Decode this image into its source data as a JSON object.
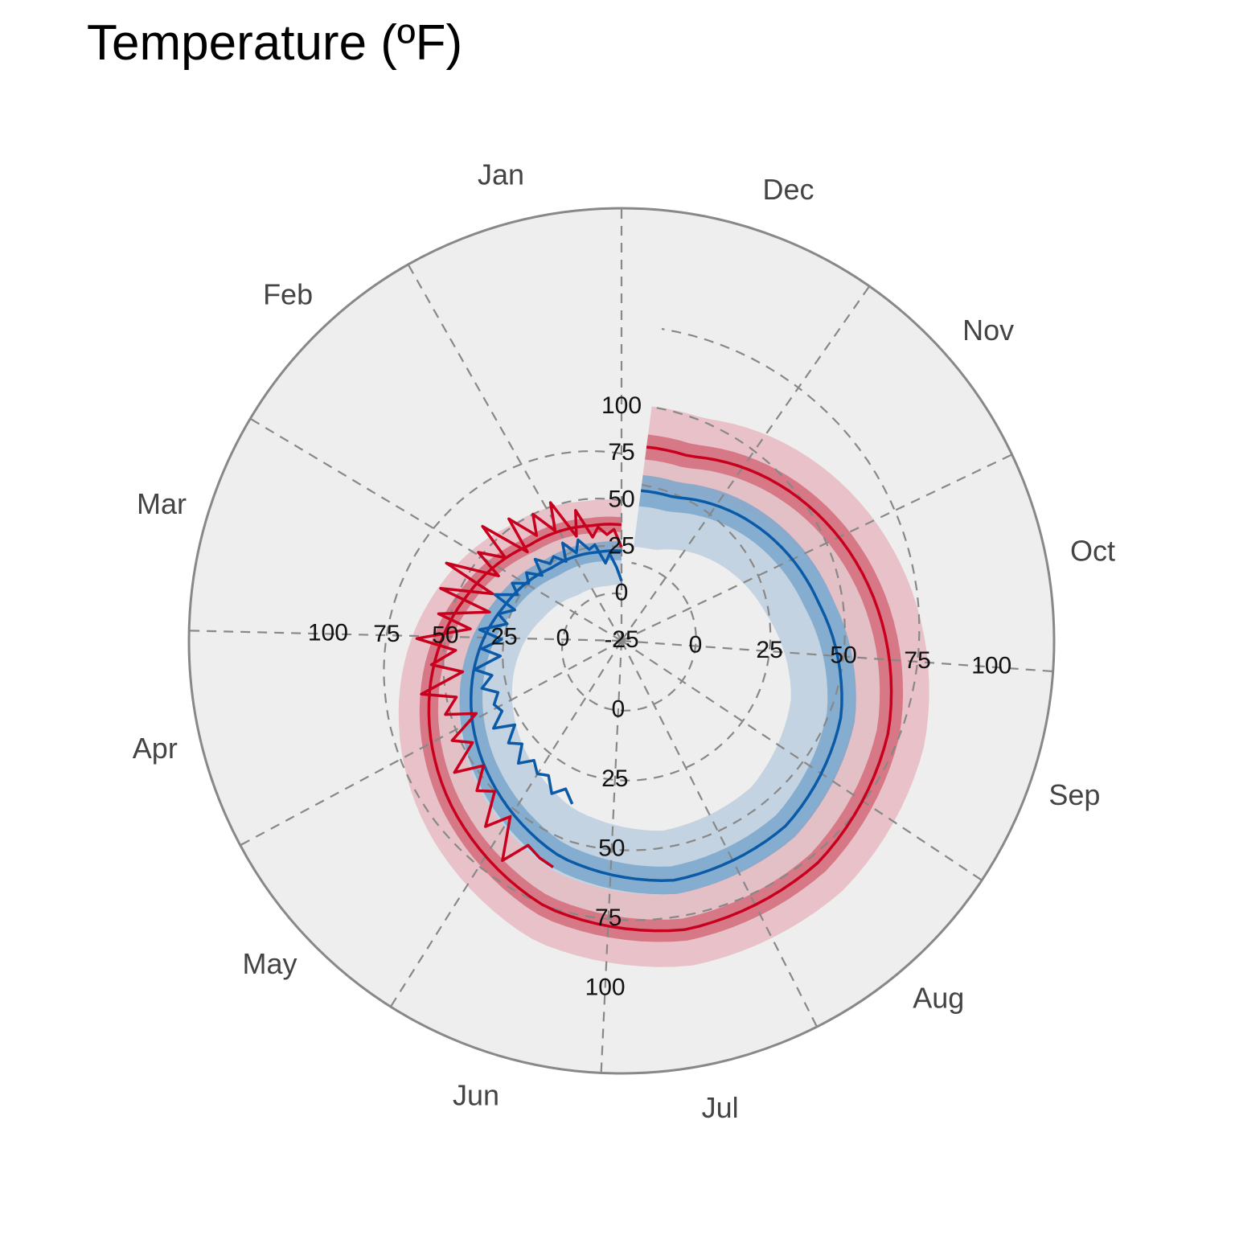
{
  "chart_data": {
    "type": "line",
    "title": "Temperature (ºF)",
    "projection": "polar, counterclockwise, spiral offset",
    "angular_axis": {
      "labels": [
        "Jan",
        "Feb",
        "Mar",
        "Apr",
        "May",
        "Jun",
        "Jul",
        "Aug",
        "Sep",
        "Oct",
        "Nov",
        "Dec"
      ]
    },
    "radial_axis": {
      "range": [
        -25,
        100
      ],
      "tick_labels": [
        "-25",
        "0",
        "25",
        "50",
        "75",
        "100"
      ]
    },
    "grid": true,
    "colors": {
      "high": "#c8001e",
      "low": "#0b5aa7",
      "high_band_outer": "#e7bdc3",
      "high_band_inner": "#d4707e",
      "low_band_outer": "#c1d1df",
      "low_band_inner": "#7aa6cb",
      "background": "#eeeeee",
      "grid": "#888888"
    },
    "series": [
      {
        "kind": "normal_high",
        "x": [
          "Jan",
          "Feb",
          "Mar",
          "Apr",
          "May",
          "Jun",
          "Jul",
          "Aug",
          "Sep",
          "Oct",
          "Nov",
          "Dec"
        ],
        "values": [
          36,
          38,
          46,
          56,
          66,
          75,
          80,
          78,
          71,
          60,
          49,
          38
        ],
        "band_inner": [
          [
            32,
            40
          ],
          [
            34,
            42
          ],
          [
            42,
            50
          ],
          [
            52,
            60
          ],
          [
            62,
            70
          ],
          [
            71,
            79
          ],
          [
            76,
            84
          ],
          [
            74,
            82
          ],
          [
            67,
            75
          ],
          [
            56,
            64
          ],
          [
            45,
            53
          ],
          [
            34,
            42
          ]
        ],
        "band_outer": [
          [
            23,
            49
          ],
          [
            25,
            51
          ],
          [
            33,
            59
          ],
          [
            43,
            69
          ],
          [
            53,
            79
          ],
          [
            62,
            88
          ],
          [
            67,
            93
          ],
          [
            65,
            91
          ],
          [
            58,
            84
          ],
          [
            47,
            73
          ],
          [
            36,
            62
          ],
          [
            25,
            51
          ]
        ]
      },
      {
        "kind": "normal_low",
        "x": [
          "Jan",
          "Feb",
          "Mar",
          "Apr",
          "May",
          "Jun",
          "Jul",
          "Aug",
          "Sep",
          "Oct",
          "Nov",
          "Dec"
        ],
        "values": [
          22,
          23,
          29,
          38,
          47,
          56,
          62,
          61,
          54,
          42,
          33,
          24
        ],
        "band_inner": [
          [
            17,
            27
          ],
          [
            18,
            28
          ],
          [
            24,
            34
          ],
          [
            33,
            43
          ],
          [
            42,
            52
          ],
          [
            51,
            61
          ],
          [
            57,
            67
          ],
          [
            56,
            66
          ],
          [
            49,
            59
          ],
          [
            37,
            47
          ],
          [
            28,
            38
          ],
          [
            19,
            29
          ]
        ],
        "band_outer": [
          [
            4,
            40
          ],
          [
            5,
            41
          ],
          [
            11,
            47
          ],
          [
            20,
            56
          ],
          [
            29,
            65
          ],
          [
            38,
            74
          ],
          [
            44,
            80
          ],
          [
            43,
            79
          ],
          [
            36,
            72
          ],
          [
            24,
            60
          ],
          [
            15,
            51
          ],
          [
            6,
            42
          ]
        ]
      },
      {
        "kind": "daily_high",
        "x_days": [
          0,
          4,
          8,
          12,
          16,
          20,
          24,
          28,
          32,
          36,
          40,
          44,
          48,
          52,
          56,
          60,
          64,
          68,
          72,
          76,
          80,
          84,
          88,
          92,
          96,
          100,
          104,
          108,
          112,
          116,
          120,
          124,
          128,
          132,
          136,
          140,
          144,
          148,
          152,
          156,
          160,
          164,
          168
        ],
        "values": [
          25,
          34,
          31,
          35,
          30,
          45,
          32,
          52,
          38,
          50,
          40,
          54,
          36,
          59,
          41,
          52,
          38,
          61,
          36,
          58,
          34,
          55,
          40,
          62,
          45,
          55,
          42,
          60,
          46,
          52,
          40,
          53,
          46,
          58,
          47,
          55,
          50,
          62,
          53,
          68,
          58,
          60,
          61
        ]
      },
      {
        "kind": "daily_low",
        "x_days": [
          0,
          4,
          8,
          12,
          16,
          20,
          24,
          28,
          32,
          36,
          40,
          44,
          48,
          52,
          56,
          60,
          64,
          68,
          72,
          76,
          80,
          84,
          88,
          92,
          96,
          100,
          104,
          108,
          112,
          116,
          120,
          124,
          128,
          132,
          136,
          140,
          144,
          148,
          152,
          156,
          160,
          164,
          168
        ],
        "values": [
          7,
          14,
          21,
          16,
          26,
          24,
          30,
          24,
          31,
          22,
          27,
          25,
          31,
          23,
          29,
          25,
          31,
          26,
          35,
          24,
          30,
          25,
          36,
          26,
          34,
          26,
          37,
          30,
          35,
          29,
          32,
          30,
          36,
          28,
          34,
          30,
          36,
          31,
          34,
          32,
          37,
          33,
          37
        ]
      }
    ]
  }
}
